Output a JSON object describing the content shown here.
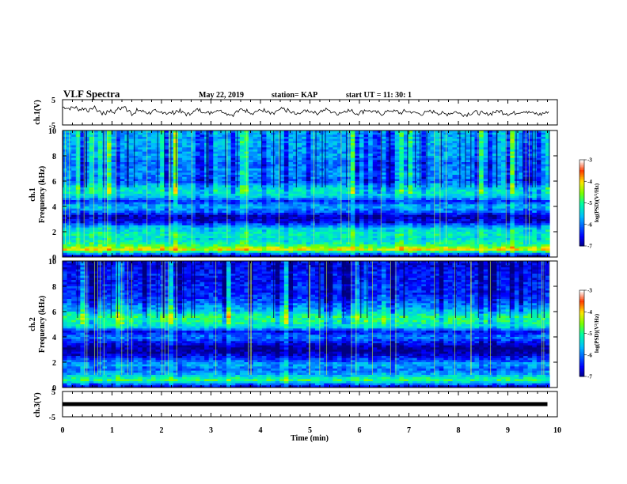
{
  "header": {
    "title": "VLF Spectra",
    "date": "May 22, 2019",
    "station": "station= KAP",
    "start": "start  UT  =   11: 30: 1"
  },
  "chart_data": [
    {
      "type": "line",
      "name": "ch1-waveform",
      "ylabel": "ch.1(V)",
      "ylim": [
        -5,
        5
      ],
      "xlim": [
        0,
        10
      ],
      "x": [
        0,
        0.1,
        0.2,
        0.3,
        0.4,
        0.5,
        0.6,
        0.7,
        0.8,
        0.9,
        1.0,
        1.1,
        1.2,
        1.3,
        1.4,
        1.5,
        1.6,
        1.7,
        1.8,
        1.9,
        2.0,
        2.1,
        2.2,
        2.3,
        2.4,
        2.5,
        2.6,
        2.7,
        2.8,
        2.9,
        3.0,
        3.1,
        3.2,
        3.3,
        3.4,
        3.5,
        3.6,
        3.7,
        3.8,
        3.9,
        4.0,
        4.1,
        4.2,
        4.3,
        4.4,
        4.5,
        4.6,
        4.7,
        4.8,
        4.9,
        5.0,
        5.1,
        5.2,
        5.3,
        5.4,
        5.5,
        5.6,
        5.7,
        5.8,
        5.9,
        6.0,
        6.1,
        6.2,
        6.3,
        6.4,
        6.5,
        6.6,
        6.7,
        6.8,
        6.9,
        7.0,
        7.1,
        7.2,
        7.3,
        7.4,
        7.5,
        7.6,
        7.7,
        7.8,
        7.9,
        8.0,
        8.1,
        8.2,
        8.3,
        8.4,
        8.5,
        8.6,
        8.7,
        8.8,
        8.9,
        9.0,
        9.1,
        9.2,
        9.3,
        9.4,
        9.5,
        9.6,
        9.7,
        9.8
      ],
      "values": [
        2.0,
        1.6,
        1.9,
        1.2,
        1.5,
        0.8,
        1.8,
        0.4,
        -0.5,
        0.6,
        0.2,
        1.4,
        1.9,
        0.9,
        -0.6,
        0.8,
        0.3,
        -0.2,
        0.4,
        -0.3,
        0.2,
        -0.4,
        -0.1,
        0.6,
        -0.2,
        -0.8,
        0.2,
        0.9,
        0.5,
        -0.3,
        0.3,
        1.0,
        0.4,
        -0.5,
        -0.9,
        0.3,
        1.1,
        0.6,
        -0.2,
        0.5,
        0.8,
        -0.1,
        -0.7,
        0.3,
        1.2,
        0.7,
        -0.2,
        -0.8,
        0.1,
        0.7,
        0.4,
        -0.3,
        0.6,
        1.0,
        0.2,
        -0.5,
        0.0,
        0.8,
        0.5,
        -0.4,
        0.2,
        0.9,
        0.4,
        -0.1,
        -0.6,
        0.1,
        0.7,
        0.3,
        -0.2,
        0.4,
        0.2,
        -0.3,
        -0.6,
        -0.2,
        0.3,
        0.1,
        -0.4,
        -0.7,
        -0.3,
        0.2,
        -0.5,
        -0.9,
        -0.4,
        0.0,
        -0.3,
        -0.8,
        -0.5,
        0.1,
        0.4,
        -0.2,
        -0.6,
        -0.3,
        0.2,
        0.5,
        -0.1,
        -0.5,
        -0.8,
        -0.3,
        0.3
      ],
      "yticks": [
        "-5",
        "5"
      ]
    },
    {
      "type": "heatmap",
      "name": "ch1-spectrogram",
      "ylabel": "ch.1\nFrequency (kHz)",
      "xlim": [
        0,
        10
      ],
      "ylim": [
        0,
        10
      ],
      "yticks": [
        "0",
        "2",
        "4",
        "6",
        "8",
        "10"
      ],
      "colorbar": {
        "label": "log(PSD)(V²/Hz)",
        "range": [
          -7,
          -3
        ],
        "ticks": [
          "-3",
          "-4",
          "-5",
          "-6",
          "-7"
        ]
      },
      "band_profile": [
        {
          "f": 0.3,
          "v": -5.6
        },
        {
          "f": 0.6,
          "v": -4.0
        },
        {
          "f": 1.0,
          "v": -5.0
        },
        {
          "f": 1.4,
          "v": -5.3
        },
        {
          "f": 1.8,
          "v": -5.1
        },
        {
          "f": 2.3,
          "v": -5.5
        },
        {
          "f": 2.8,
          "v": -6.6
        },
        {
          "f": 3.2,
          "v": -6.8
        },
        {
          "f": 3.6,
          "v": -6.0
        },
        {
          "f": 4.0,
          "v": -5.6
        },
        {
          "f": 4.4,
          "v": -6.3
        },
        {
          "f": 4.8,
          "v": -5.4
        },
        {
          "f": 5.2,
          "v": -5.2
        },
        {
          "f": 5.6,
          "v": -5.5
        },
        {
          "f": 6.0,
          "v": -6.1
        },
        {
          "f": 6.5,
          "v": -5.8
        },
        {
          "f": 7.0,
          "v": -5.9
        },
        {
          "f": 7.5,
          "v": -6.0
        },
        {
          "f": 8.0,
          "v": -5.7
        },
        {
          "f": 8.5,
          "v": -5.8
        },
        {
          "f": 9.0,
          "v": -5.6
        },
        {
          "f": 9.5,
          "v": -5.7
        },
        {
          "f": 10.0,
          "v": -5.6
        }
      ]
    },
    {
      "type": "heatmap",
      "name": "ch2-spectrogram",
      "ylabel": "ch.2\nFrequency (kHz)",
      "xlim": [
        0,
        10
      ],
      "ylim": [
        0,
        10
      ],
      "yticks": [
        "0",
        "2",
        "4",
        "6",
        "8",
        "10"
      ],
      "colorbar": {
        "label": "log(PSD)(V²/Hz)",
        "range": [
          -7,
          -3
        ],
        "ticks": [
          "-3",
          "-4",
          "-5",
          "-6",
          "-7"
        ]
      },
      "band_profile": [
        {
          "f": 0.3,
          "v": -5.8
        },
        {
          "f": 0.6,
          "v": -4.8
        },
        {
          "f": 1.0,
          "v": -5.6
        },
        {
          "f": 1.4,
          "v": -6.0
        },
        {
          "f": 1.8,
          "v": -5.7
        },
        {
          "f": 2.3,
          "v": -6.3
        },
        {
          "f": 2.8,
          "v": -6.9
        },
        {
          "f": 3.2,
          "v": -6.9
        },
        {
          "f": 3.6,
          "v": -6.4
        },
        {
          "f": 4.0,
          "v": -5.9
        },
        {
          "f": 4.4,
          "v": -6.5
        },
        {
          "f": 4.8,
          "v": -5.3
        },
        {
          "f": 5.2,
          "v": -5.0
        },
        {
          "f": 5.6,
          "v": -4.9
        },
        {
          "f": 6.0,
          "v": -5.5
        },
        {
          "f": 6.5,
          "v": -5.9
        },
        {
          "f": 7.0,
          "v": -6.2
        },
        {
          "f": 7.5,
          "v": -6.4
        },
        {
          "f": 8.0,
          "v": -6.3
        },
        {
          "f": 8.5,
          "v": -6.5
        },
        {
          "f": 9.0,
          "v": -6.4
        },
        {
          "f": 9.5,
          "v": -6.6
        },
        {
          "f": 10.0,
          "v": -6.5
        }
      ]
    },
    {
      "type": "line",
      "name": "ch3-waveform",
      "ylabel": "ch.3(V)",
      "ylim": [
        -5,
        5
      ],
      "xlim": [
        0,
        10
      ],
      "x": [
        0,
        9.8
      ],
      "values": [
        0,
        0
      ],
      "yticks": [
        "-5",
        "5"
      ]
    }
  ],
  "xaxis": {
    "label": "Time  (min)",
    "ticks": [
      "0",
      "1",
      "2",
      "3",
      "4",
      "5",
      "6",
      "7",
      "8",
      "9",
      "10"
    ]
  }
}
